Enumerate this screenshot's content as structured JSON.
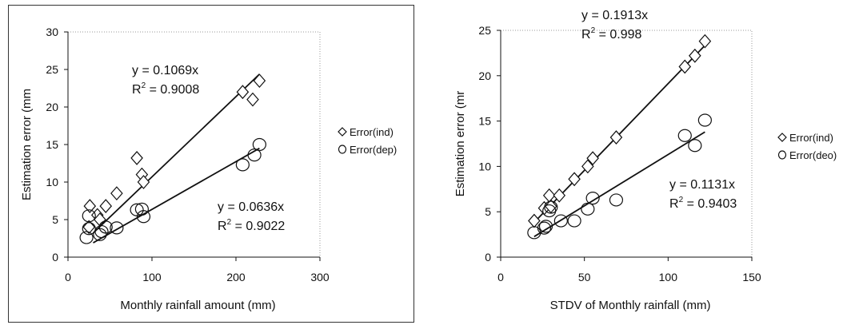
{
  "chart_data": [
    {
      "type": "scatter",
      "title": "",
      "xlabel": "Monthly rainfall amount (mm)",
      "ylabel": "Estimation error (mm",
      "xlim": [
        0,
        300
      ],
      "ylim": [
        0,
        30
      ],
      "xticks": [
        "0",
        "100",
        "200",
        "300"
      ],
      "yticks": [
        "0",
        "5",
        "10",
        "15",
        "20",
        "25",
        "30"
      ],
      "grid": false,
      "legend": "right",
      "series": [
        {
          "name": "Error(ind)",
          "marker": "diamond",
          "x": [
            25,
            26,
            35,
            38,
            45,
            58,
            82,
            88,
            90,
            208,
            220,
            228
          ],
          "y": [
            4.0,
            6.8,
            5.6,
            5.0,
            6.8,
            8.5,
            13.2,
            11.0,
            10.0,
            22.0,
            21.0,
            23.5
          ]
        },
        {
          "name": "Error(dep)",
          "marker": "circle",
          "x": [
            22,
            25,
            25,
            38,
            40,
            45,
            58,
            82,
            88,
            90,
            208,
            222,
            228
          ],
          "y": [
            2.6,
            3.8,
            5.5,
            3.0,
            3.4,
            4.0,
            3.9,
            6.3,
            6.4,
            5.4,
            12.3,
            13.6,
            15.0
          ]
        }
      ],
      "annotations": [
        {
          "equation": "y = 0.1069x",
          "r2_prefix": "R",
          "r2_exp": "2",
          "r2_value": " = 0.9008",
          "slope": 0.1069,
          "x_range": [
            30,
            228
          ]
        },
        {
          "equation": "y = 0.0636x",
          "r2_prefix": "R",
          "r2_exp": "2",
          "r2_value": " = 0.9022",
          "slope": 0.0636,
          "x_range": [
            30,
            228
          ]
        }
      ]
    },
    {
      "type": "scatter",
      "title": "",
      "xlabel": "STDV of Monthly rainfall (mm)",
      "ylabel": "Estimation error (mr",
      "xlim": [
        0,
        150
      ],
      "ylim": [
        0,
        25
      ],
      "xticks": [
        "0",
        "50",
        "100",
        "150"
      ],
      "yticks": [
        "0",
        "5",
        "10",
        "15",
        "20",
        "25"
      ],
      "grid": false,
      "legend": "right",
      "series": [
        {
          "name": "Error(ind)",
          "marker": "diamond",
          "x": [
            20,
            26,
            29,
            30,
            35,
            44,
            52,
            55,
            69,
            110,
            116,
            122
          ],
          "y": [
            4.0,
            5.4,
            6.8,
            5.6,
            6.8,
            8.6,
            10.0,
            10.9,
            13.2,
            21.0,
            22.2,
            23.8
          ]
        },
        {
          "name": "Error(deo)",
          "marker": "circle",
          "x": [
            20,
            26,
            27,
            29,
            30,
            36,
            44,
            52,
            55,
            69,
            110,
            116,
            122
          ],
          "y": [
            2.7,
            3.2,
            3.4,
            5.1,
            5.5,
            4.0,
            4.0,
            5.3,
            6.5,
            6.3,
            13.4,
            12.3,
            15.1
          ]
        }
      ],
      "annotations": [
        {
          "equation": "y = 0.1913x",
          "r2_prefix": "R",
          "r2_exp": "2",
          "r2_value": " = 0.998",
          "slope": 0.1913,
          "x_range": [
            20,
            122
          ]
        },
        {
          "equation": "y = 0.1131x",
          "r2_prefix": "R",
          "r2_exp": "2",
          "r2_value": " = 0.9403",
          "slope": 0.1131,
          "x_range": [
            20,
            122
          ]
        }
      ]
    }
  ]
}
